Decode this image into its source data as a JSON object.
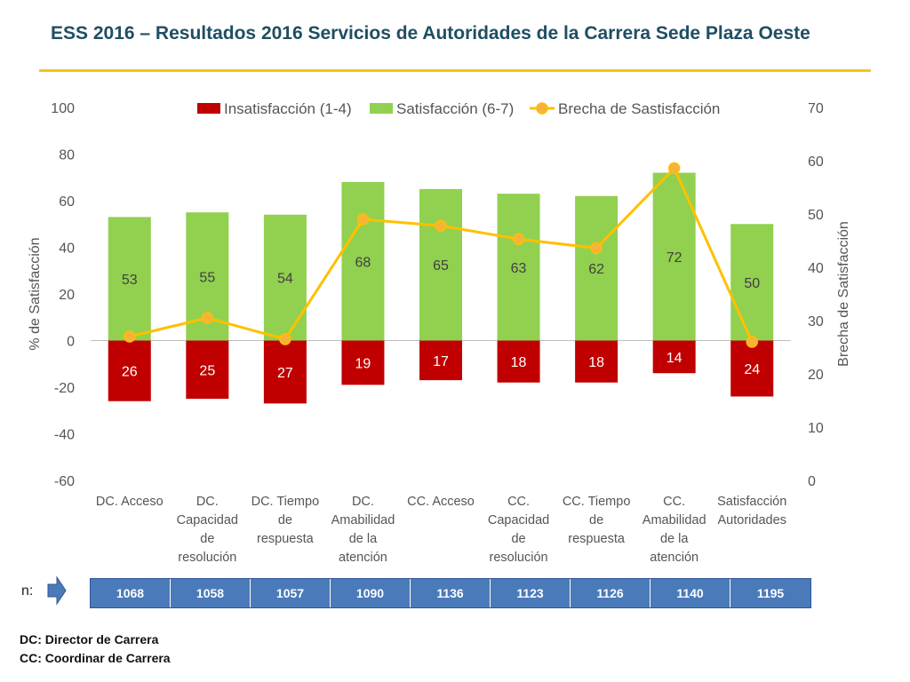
{
  "title": "ESS 2016 – Resultados 2016 Servicios de Autoridades de la Carrera Sede Plaza Oeste",
  "chart_data": {
    "type": "bar",
    "categories": [
      [
        "DC. Acceso"
      ],
      [
        "DC.",
        "Capacidad",
        "de",
        "resolución"
      ],
      [
        "DC. Tiempo",
        "de",
        "respuesta"
      ],
      [
        "DC.",
        "Amabilidad",
        "de la",
        "atención"
      ],
      [
        "CC. Acceso"
      ],
      [
        "CC.",
        "Capacidad",
        "de",
        "resolución"
      ],
      [
        "CC. Tiempo",
        "de",
        "respuesta"
      ],
      [
        "CC.",
        "Amabilidad",
        "de la",
        "atención"
      ],
      [
        "Satisfacción",
        "Autoridades"
      ]
    ],
    "series": [
      {
        "name": "Insatisfacción (1-4)",
        "axis": "left",
        "kind": "bar",
        "color": "#c00000",
        "values": [
          -26,
          -25,
          -27,
          -19,
          -17,
          -18,
          -18,
          -14,
          -24
        ],
        "labels": [
          "26",
          "25",
          "27",
          "19",
          "17",
          "18",
          "18",
          "14",
          "24"
        ]
      },
      {
        "name": "Satisfacción (6-7)",
        "axis": "left",
        "kind": "bar",
        "color": "#92d050",
        "values": [
          53,
          55,
          54,
          68,
          65,
          63,
          62,
          72,
          50
        ],
        "labels": [
          "53",
          "55",
          "54",
          "68",
          "65",
          "63",
          "62",
          "72",
          "50"
        ]
      },
      {
        "name": "Brecha de Sastisfacción",
        "axis": "right",
        "kind": "line",
        "color": "#ffc000",
        "marker_fill": "#f7b23b",
        "values": [
          27,
          30.5,
          26.5,
          49,
          47.8,
          45.3,
          43.6,
          58.6,
          26
        ]
      }
    ],
    "ylabel": "% de Satisfacción",
    "ylabel_right": "Brecha de Satisfacción",
    "ylim": [
      -60,
      100
    ],
    "ylim_right": [
      0,
      70
    ],
    "yticks": [
      "100",
      "80",
      "60",
      "40",
      "20",
      "0",
      "-20",
      "-40",
      "-60"
    ],
    "yticks_right": [
      "70",
      "60",
      "50",
      "40",
      "30",
      "20",
      "10",
      "0"
    ],
    "legend_position": "top"
  },
  "n_label": "n:",
  "n_values": [
    "1068",
    "1058",
    "1057",
    "1090",
    "1136",
    "1123",
    "1126",
    "1140",
    "1195"
  ],
  "footnotes": [
    "DC: Director de Carrera",
    "CC: Coordinar de Carrera"
  ]
}
